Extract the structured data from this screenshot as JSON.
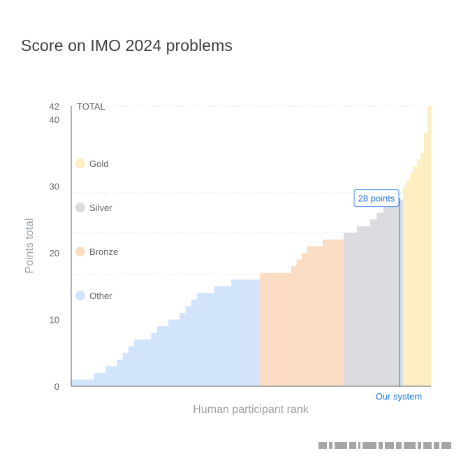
{
  "page": {
    "title": "Score on IMO 2024 problems"
  },
  "chart_data": {
    "type": "area",
    "title": "Score on IMO 2024 problems",
    "xlabel": "Human participant rank",
    "ylabel": "Points total",
    "ylim": [
      0,
      42
    ],
    "yticks": [
      0,
      10,
      20,
      30,
      40,
      42
    ],
    "total_label": "TOTAL",
    "grid": "dotted at 16, 23, 29, 42",
    "legend_position": "left inside",
    "colors": {
      "gold": "#fdefc1",
      "silver": "#dadce0",
      "bronze": "#fbdcc4",
      "other": "#d2e3fc",
      "system": "#4285f4",
      "axis": "#5f6368"
    },
    "series": [
      {
        "name": "Other",
        "color": "#d2e3fc",
        "values": [
          1,
          1,
          1,
          1,
          2,
          2,
          3,
          3,
          4,
          5,
          6,
          7,
          7,
          7,
          8,
          9,
          9,
          10,
          10,
          11,
          12,
          13,
          14,
          14,
          14,
          15,
          15,
          15,
          16,
          16,
          16,
          16,
          16
        ]
      },
      {
        "name": "Bronze",
        "color": "#fbdcc4",
        "values": [
          17,
          17,
          17,
          17,
          17,
          17,
          18,
          19,
          20,
          21,
          21,
          21,
          22,
          22,
          22,
          22
        ]
      },
      {
        "name": "Silver",
        "color": "#dadce0",
        "values": [
          23,
          23,
          24,
          24,
          25,
          26,
          27,
          27,
          28
        ]
      },
      {
        "name": "Gold",
        "color": "#fdefc1",
        "values": [
          30,
          31,
          32,
          33,
          34,
          35,
          38,
          42
        ]
      }
    ],
    "legend": [
      {
        "label": "Gold",
        "color": "#fdefc1"
      },
      {
        "label": "Silver",
        "color": "#dadce0"
      },
      {
        "label": "Bronze",
        "color": "#fbdcc4"
      },
      {
        "label": "Other",
        "color": "#d2e3fc"
      }
    ],
    "system": {
      "score": 28,
      "score_label": "28 points",
      "label": "Our system"
    }
  }
}
